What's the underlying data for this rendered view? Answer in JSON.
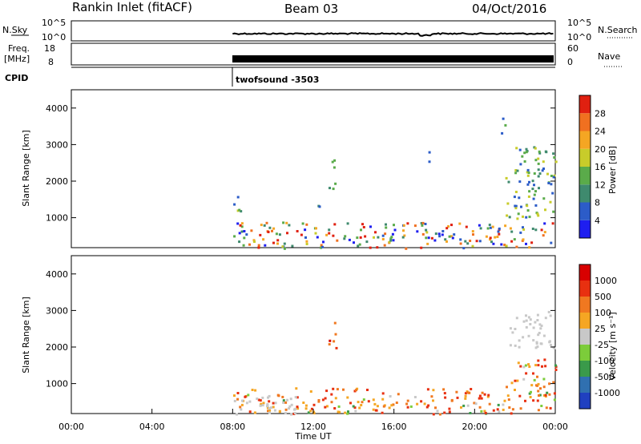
{
  "header": {
    "station": "Rankin Inlet (fitACF)",
    "beam": "Beam 03",
    "date": "04/Oct/2016"
  },
  "strips": {
    "nsky": {
      "left_label": "N.Sky",
      "right_label": "N.Search",
      "left_ticks": [
        "10^5",
        "10^0"
      ],
      "right_ticks": [
        "10^5",
        "10^0"
      ]
    },
    "freq": {
      "left_label_1": "Freq.",
      "left_label_2": "[MHz]",
      "right_label": "Nave",
      "left_ticks": [
        "18",
        "8"
      ],
      "right_ticks": [
        "60",
        "0"
      ]
    },
    "cpid": {
      "label": "CPID",
      "program": "twofsound -3503"
    }
  },
  "chart_data": [
    {
      "type": "heatmap",
      "title": "",
      "quantity": "Power",
      "ylabel": "Slant Range [km]",
      "xlabel": "",
      "ylim": [
        180,
        4500
      ],
      "xlim_hours": [
        0,
        24
      ],
      "data_start_hour": 8,
      "yticks": [
        1000,
        2000,
        3000,
        4000
      ],
      "colorbar": {
        "label": "Power [dB]",
        "ticks": [
          "4",
          "8",
          "12",
          "16",
          "20",
          "24",
          "28"
        ],
        "colors": [
          "#1e1ef0",
          "#2c5cc8",
          "#3f8a6e",
          "#5aab4a",
          "#c8cc2a",
          "#f5a623",
          "#f07020",
          "#e02010"
        ]
      },
      "echo_regions": [
        {
          "t": [
            8.0,
            24.0
          ],
          "range": [
            180,
            900
          ],
          "level": "high"
        },
        {
          "t": [
            8.0,
            8.4
          ],
          "range": [
            1200,
            1900
          ],
          "level": "mid"
        },
        {
          "t": [
            11.9,
            12.3
          ],
          "range": [
            1300,
            1600
          ],
          "level": "low"
        },
        {
          "t": [
            12.7,
            13.1
          ],
          "range": [
            1800,
            2700
          ],
          "level": "mid"
        },
        {
          "t": [
            17.7,
            17.9
          ],
          "range": [
            2500,
            3100
          ],
          "level": "low"
        },
        {
          "t": [
            21.3,
            21.6
          ],
          "range": [
            3300,
            3900
          ],
          "level": "mid"
        },
        {
          "t": [
            21.5,
            24.0
          ],
          "range": [
            1000,
            3000
          ],
          "level": "mid"
        }
      ]
    },
    {
      "type": "heatmap",
      "title": "",
      "quantity": "Velocity",
      "ylabel": "Slant Range [km]",
      "xlabel": "Time UT",
      "ylim": [
        180,
        4500
      ],
      "xlim_hours": [
        0,
        24
      ],
      "data_start_hour": 8,
      "yticks": [
        1000,
        2000,
        3000,
        4000
      ],
      "xticks": [
        "00:00",
        "04:00",
        "08:00",
        "12:00",
        "16:00",
        "20:00",
        "00:00"
      ],
      "colorbar": {
        "label": "Velocity [m s⁻¹]",
        "ticks": [
          "1000",
          "500",
          "100",
          "25",
          "-25",
          "-100",
          "-500",
          "-1000"
        ],
        "colors": [
          "#2040c0",
          "#3070b0",
          "#3a9a4a",
          "#7ccc3a",
          "#c8c8c8",
          "#f5a623",
          "#f07820",
          "#e83010",
          "#d80000"
        ]
      },
      "echo_regions": [
        {
          "t": [
            8.0,
            24.0
          ],
          "range": [
            180,
            900
          ],
          "level": "negative"
        },
        {
          "t": [
            8.0,
            11.5
          ],
          "range": [
            180,
            700
          ],
          "level": "ground"
        },
        {
          "t": [
            12.7,
            13.1
          ],
          "range": [
            1800,
            2700
          ],
          "level": "strong-negative"
        },
        {
          "t": [
            21.5,
            24.0
          ],
          "range": [
            2000,
            3000
          ],
          "level": "ground"
        },
        {
          "t": [
            21.5,
            24.0
          ],
          "range": [
            900,
            1700
          ],
          "level": "negative"
        }
      ]
    }
  ]
}
